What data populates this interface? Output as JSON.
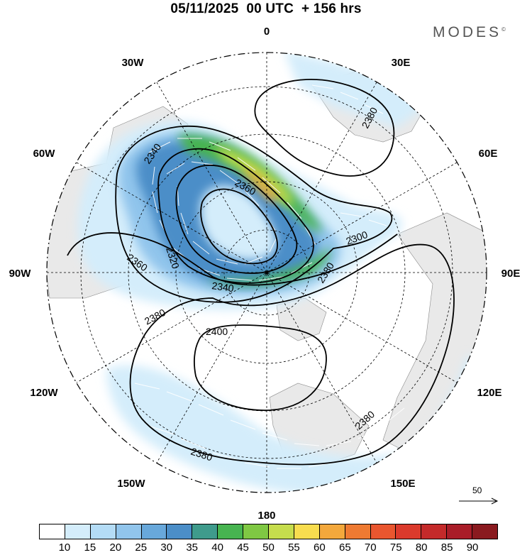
{
  "title": "05/11/2025  00 UTC  + 156 hrs",
  "brand": "MODES",
  "brand_mark": "©",
  "longitude_labels": {
    "north": "0",
    "e30": "30E",
    "e60": "60E",
    "e90": "90E",
    "e120": "120E",
    "e150": "150E",
    "south": "180",
    "w150": "150W",
    "w120": "120W",
    "w90": "90W",
    "w60": "60W",
    "w30": "30W"
  },
  "contour_labels": {
    "c2380_ne": "2380",
    "c2340_nw": "2340",
    "c2360_center": "2360",
    "c2320": "2320",
    "c2360_w": "2360",
    "c2300": "2300",
    "c2340_s": "2340",
    "c2380_e": "2380",
    "c2380_w": "2380",
    "c2400": "2400",
    "c2380_se": "2380",
    "c2380_s": "2380"
  },
  "wind_scale": {
    "value": "50"
  },
  "colorbar": {
    "colors": [
      "#ffffff",
      "#d4edfb",
      "#b4dcf6",
      "#91c5ec",
      "#68a8db",
      "#4b8ec8",
      "#3f9b8c",
      "#47b450",
      "#7fc843",
      "#c6dd4d",
      "#f8dd4f",
      "#f3a83c",
      "#ee7a32",
      "#e9562f",
      "#db3a2c",
      "#c42a2a",
      "#a91d28",
      "#8a1a1f"
    ],
    "ticks": [
      "10",
      "15",
      "20",
      "25",
      "30",
      "35",
      "40",
      "45",
      "50",
      "55",
      "60",
      "65",
      "70",
      "75",
      "80",
      "85",
      "90"
    ]
  }
}
